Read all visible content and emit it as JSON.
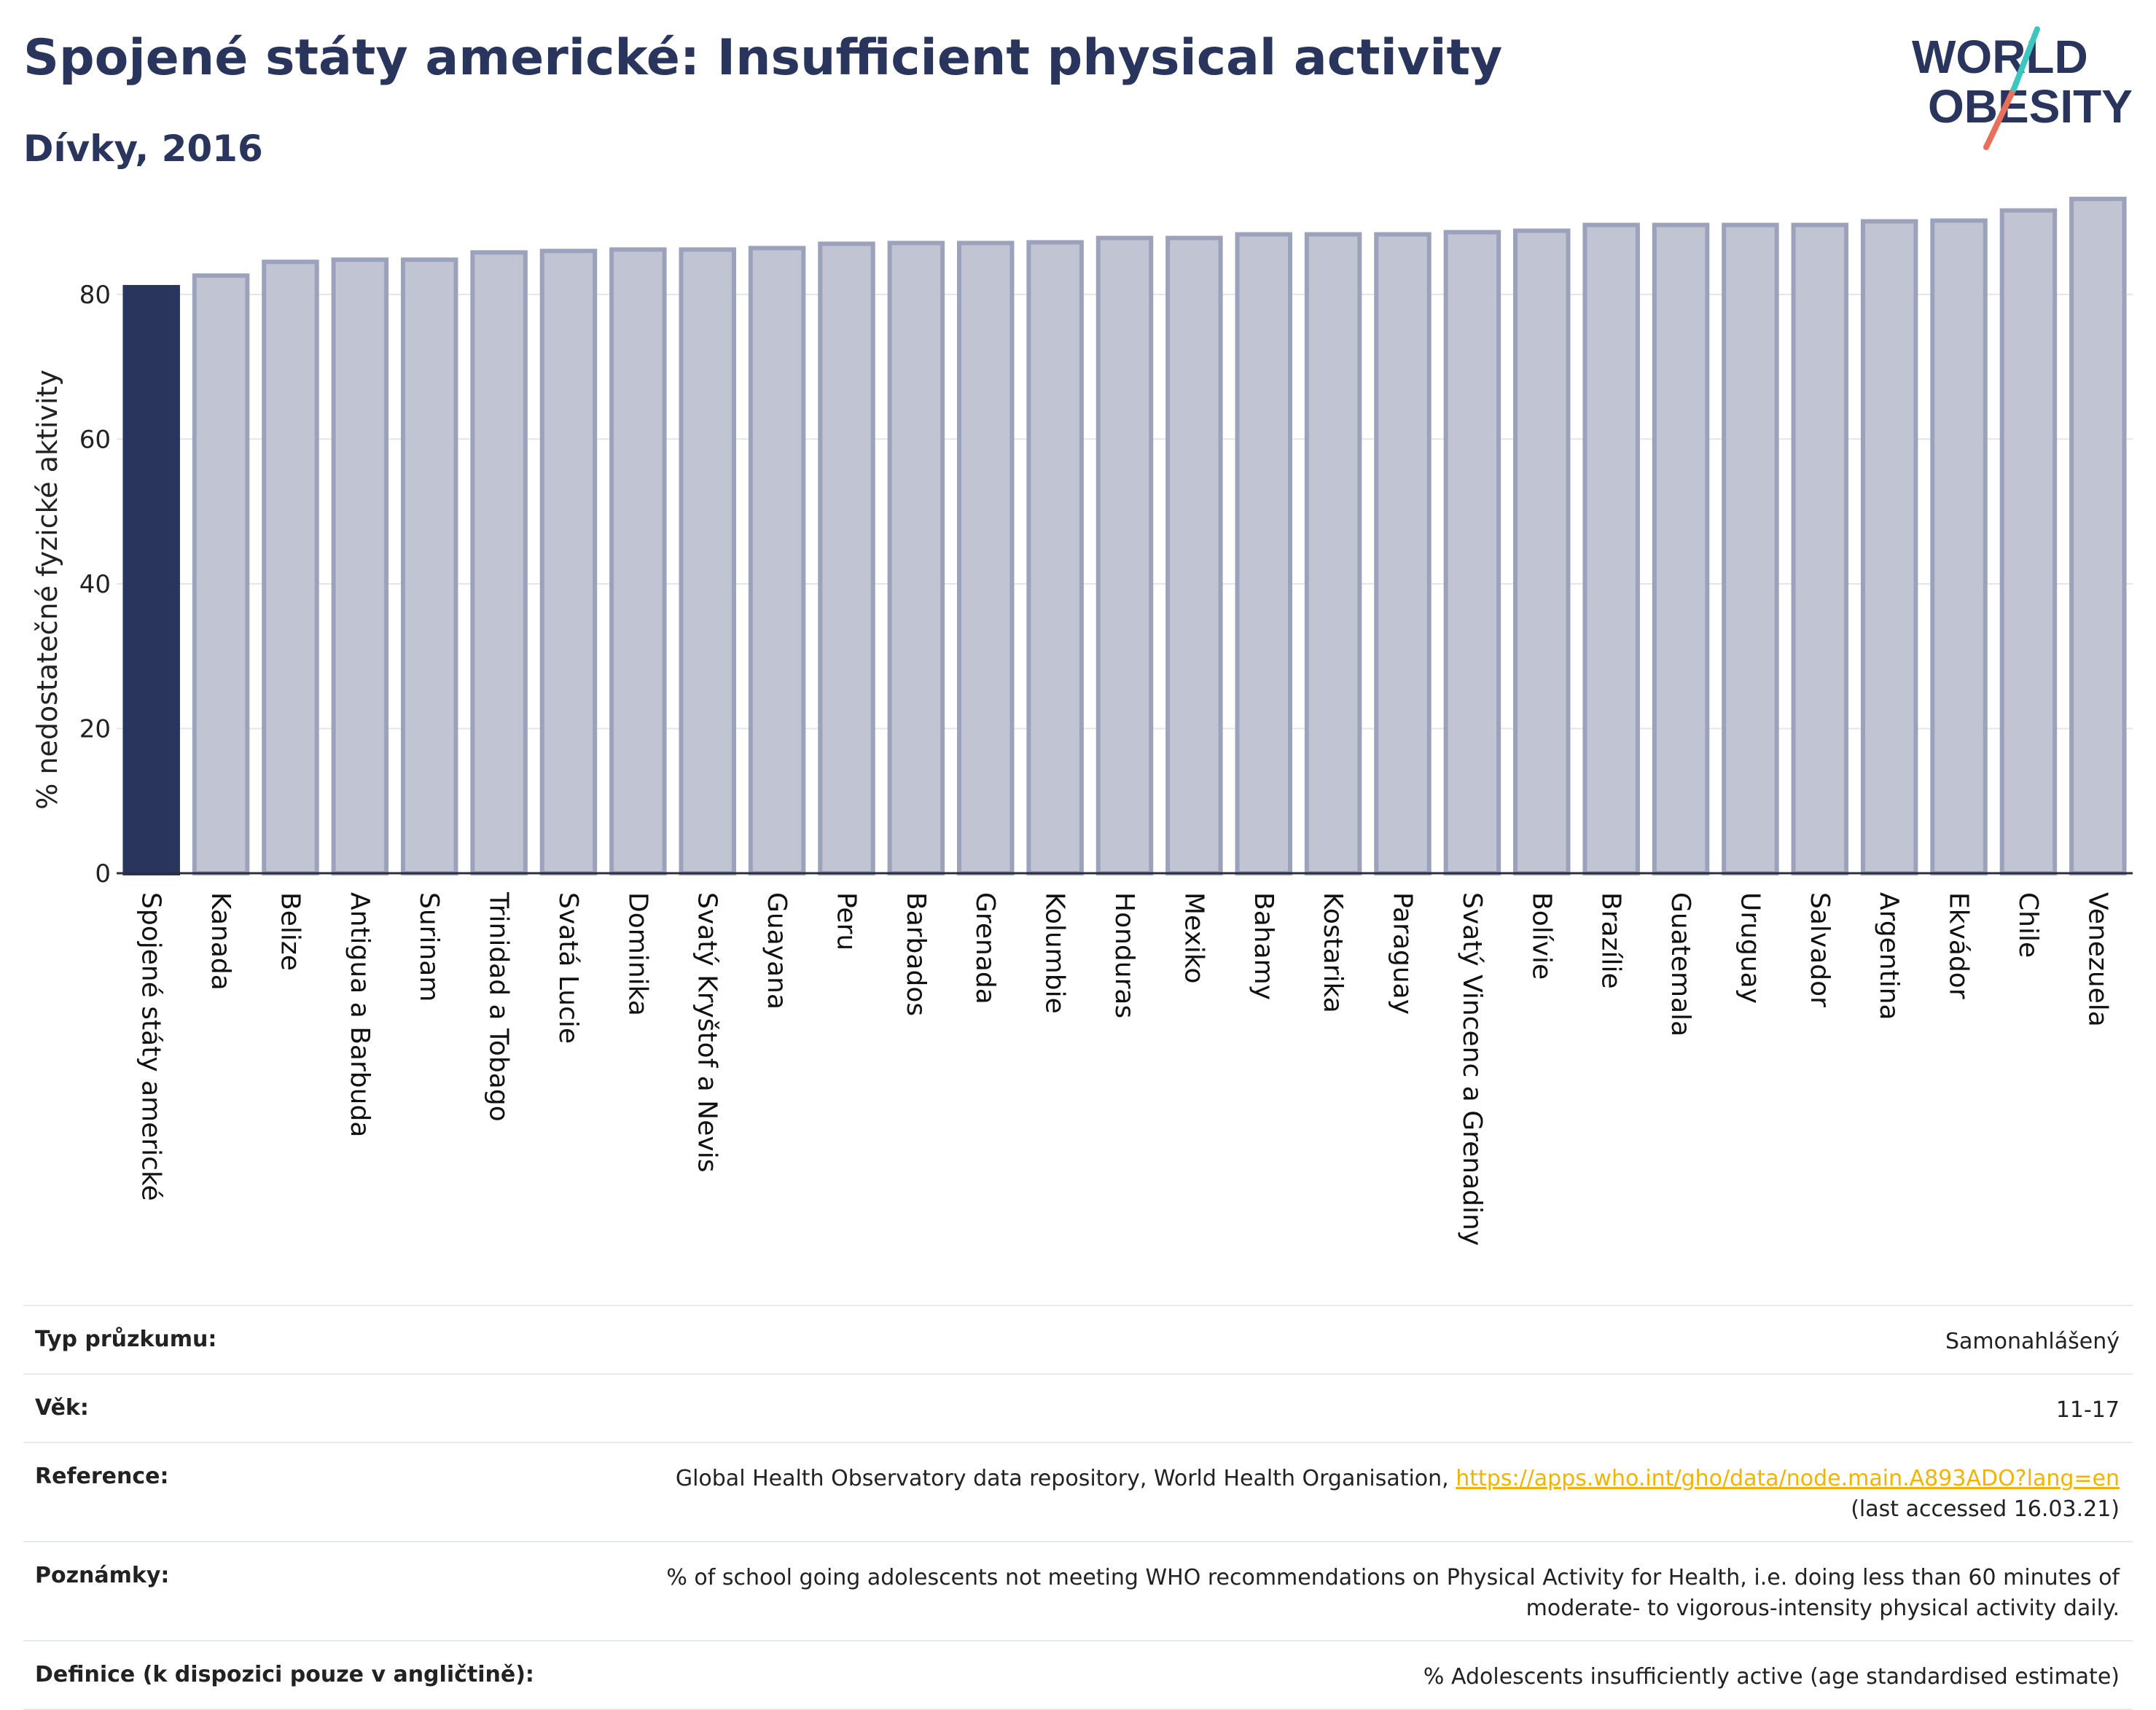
{
  "header": {
    "title": "Spojené státy americké: Insufficient physical activity",
    "subtitle": "Dívky, 2016"
  },
  "logo": {
    "line1": "WORLD",
    "line2": "OBESITY"
  },
  "colors": {
    "highlight": "#2a355e",
    "bar_fill": "#c0c4d3",
    "bar_stroke": "#9ca2bb",
    "title": "#2a355e",
    "link": "#f0b400"
  },
  "chart_data": {
    "type": "bar",
    "ylabel": "% nedostatečné fyzické aktivity",
    "ylim": [
      0,
      95
    ],
    "yticks": [
      0,
      20,
      40,
      60,
      80
    ],
    "grid": true,
    "highlight_index": 0,
    "categories": [
      "Spojené státy americké",
      "Kanada",
      "Belize",
      "Antigua a Barbuda",
      "Surinam",
      "Trinidad a Tobago",
      "Svatá Lucie",
      "Dominika",
      "Svatý Kryštof a Nevis",
      "Guayana",
      "Peru",
      "Barbados",
      "Grenada",
      "Kolumbie",
      "Honduras",
      "Mexiko",
      "Bahamy",
      "Kostarika",
      "Paraguay",
      "Svatý Vincenc a Grenadiny",
      "Bolívie",
      "Brazílie",
      "Guatemala",
      "Uruguay",
      "Salvador",
      "Argentina",
      "Ekvádor",
      "Chile",
      "Venezuela"
    ],
    "values": [
      81.0,
      82.6,
      84.5,
      84.8,
      84.8,
      85.8,
      86.0,
      86.2,
      86.2,
      86.4,
      87.0,
      87.1,
      87.1,
      87.2,
      87.8,
      87.8,
      88.3,
      88.3,
      88.3,
      88.6,
      88.8,
      89.6,
      89.6,
      89.6,
      89.6,
      90.1,
      90.2,
      91.6,
      93.2
    ]
  },
  "footer": {
    "rows": [
      {
        "label": "Typ průzkumu:",
        "value": "Samonahlášený"
      },
      {
        "label": "Věk:",
        "value": "11-17"
      },
      {
        "label": "Reference:",
        "value": "Global Health Observatory data repository, World Health Organisation,",
        "link": "https://apps.who.int/gho/data/node.main.A893ADO?lang=en",
        "value2": "(last accessed 16.03.21)"
      },
      {
        "label": "Poznámky:",
        "value": "% of school going adolescents not meeting WHO recommendations on Physical Activity for Health, i.e. doing less than 60 minutes of",
        "value2": "moderate- to vigorous-intensity physical activity daily."
      },
      {
        "label": "Definice (k dispozici pouze v angličtině):",
        "value": "% Adolescents insufficiently active (age standardised estimate)"
      }
    ]
  }
}
